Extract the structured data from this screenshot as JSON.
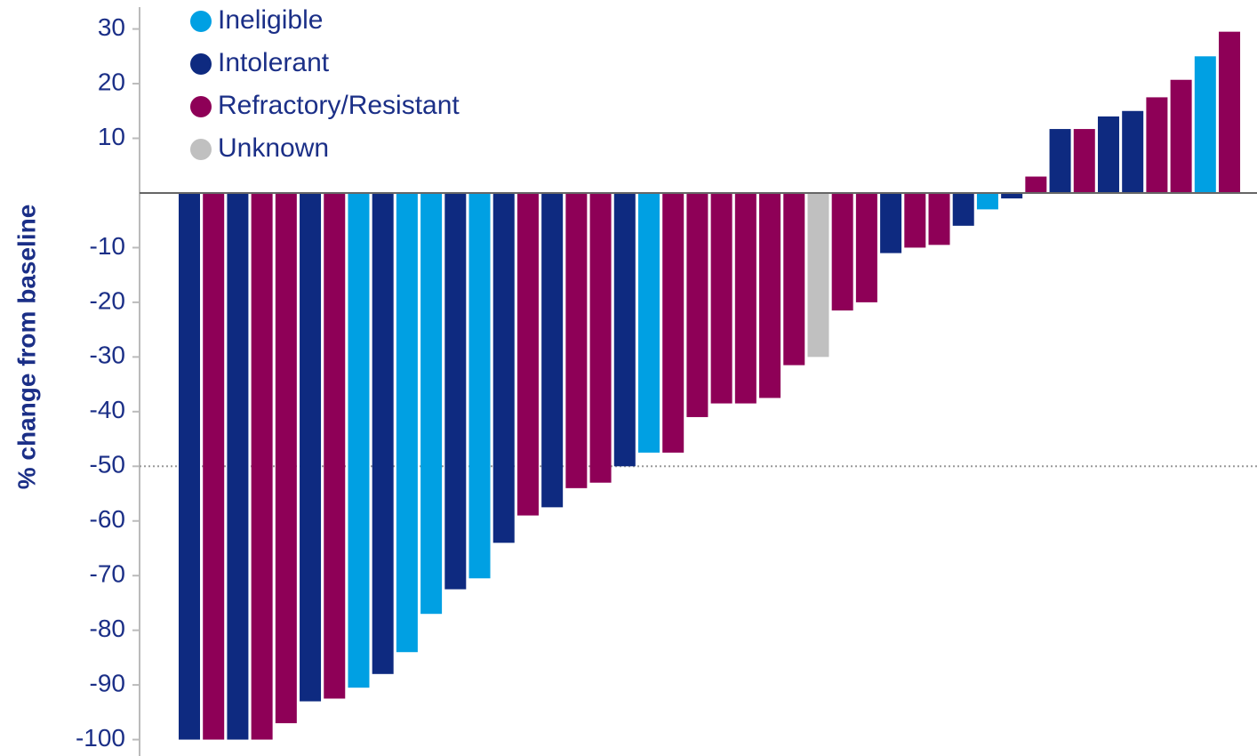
{
  "chart_data": {
    "type": "bar",
    "y_label": "% change from baseline",
    "categories": [
      null,
      null,
      null,
      null,
      null,
      null,
      null,
      null,
      null,
      null,
      null,
      null,
      null,
      null,
      null,
      null,
      null,
      null,
      null,
      null,
      null,
      null,
      null,
      null,
      null,
      null,
      null,
      null,
      null,
      null,
      null,
      null,
      null,
      null,
      null,
      null,
      null,
      null,
      null,
      null,
      null,
      null,
      null,
      null
    ],
    "series": [
      {
        "name": "Ineligible",
        "color": "#00a0e3",
        "values": [
          null,
          null,
          null,
          null,
          null,
          null,
          null,
          -90.5,
          null,
          -84,
          -77,
          null,
          -70.5,
          null,
          null,
          null,
          null,
          null,
          null,
          -47.5,
          null,
          null,
          null,
          null,
          null,
          null,
          null,
          null,
          null,
          null,
          null,
          null,
          null,
          -3,
          null,
          null,
          null,
          null,
          null,
          null,
          null,
          null,
          25,
          null
        ]
      },
      {
        "name": "Intolerant",
        "color": "#0e2a80",
        "values": [
          -100,
          null,
          -100,
          null,
          null,
          -93,
          null,
          null,
          -88,
          null,
          null,
          -72.5,
          null,
          -64,
          null,
          -57.5,
          null,
          null,
          -50,
          null,
          null,
          null,
          null,
          null,
          null,
          null,
          null,
          null,
          null,
          -11,
          null,
          null,
          -6,
          null,
          -1,
          null,
          11.7,
          null,
          14,
          15,
          null,
          null,
          null,
          null
        ]
      },
      {
        "name": "Refractory/Resistant",
        "color": "#8e0057",
        "values": [
          null,
          -100,
          null,
          -100,
          -97,
          null,
          -92.5,
          null,
          null,
          null,
          null,
          null,
          null,
          null,
          -59,
          null,
          -54,
          -53,
          null,
          null,
          -47.5,
          -41,
          -38.5,
          -38.5,
          -37.5,
          -31.5,
          null,
          -21.5,
          -20,
          null,
          -10,
          -9.5,
          null,
          null,
          null,
          3,
          null,
          11.7,
          null,
          null,
          17.5,
          20.7,
          null,
          29.5
        ]
      },
      {
        "name": "Unknown",
        "color": "#c0c0c0",
        "values": [
          null,
          null,
          null,
          null,
          null,
          null,
          null,
          null,
          null,
          null,
          null,
          null,
          null,
          null,
          null,
          null,
          null,
          null,
          null,
          null,
          null,
          null,
          null,
          null,
          null,
          null,
          -30,
          null,
          null,
          null,
          null,
          null,
          null,
          null,
          null,
          null,
          null,
          null,
          null,
          null,
          null,
          null,
          null,
          null
        ]
      }
    ],
    "ylim": [
      -103,
      34
    ],
    "yticks": [
      30,
      20,
      10,
      -10,
      -20,
      -30,
      -40,
      -50,
      -60,
      -70,
      -80,
      -90,
      -100
    ],
    "reference_line": -50
  }
}
